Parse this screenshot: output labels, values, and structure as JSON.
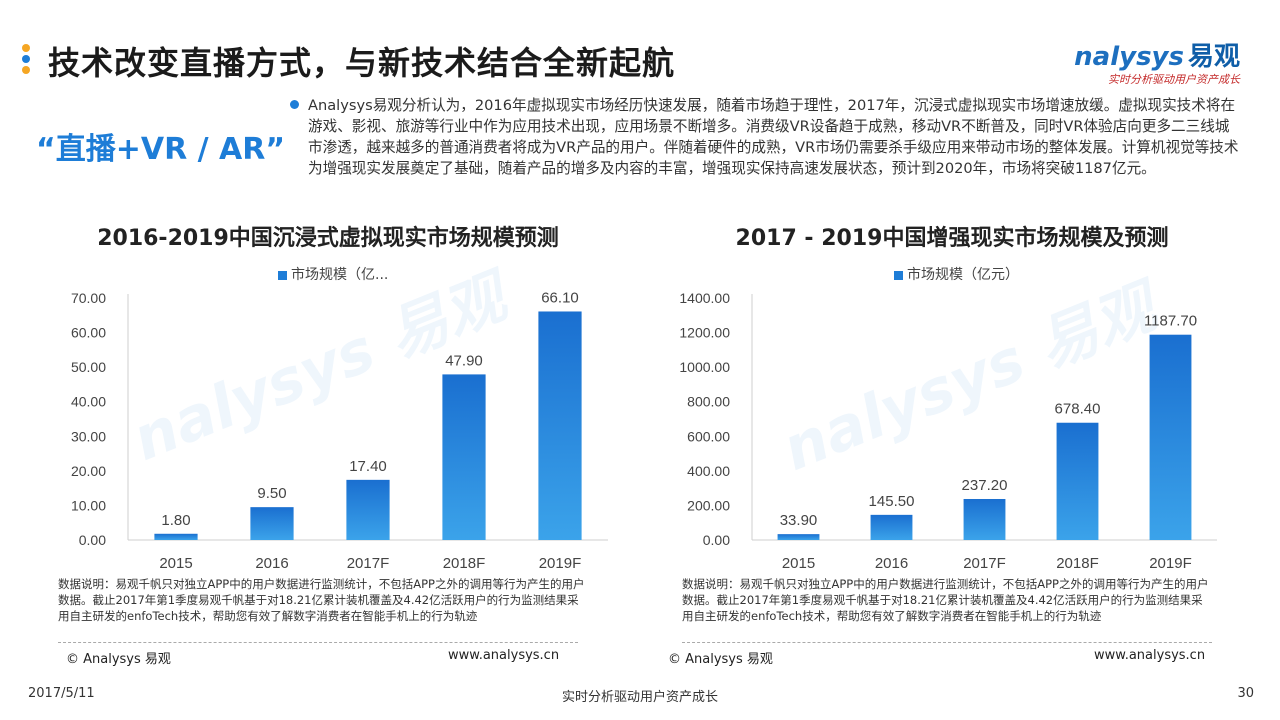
{
  "header": {
    "title": "技术改变直播方式，与新技术结合全新起航",
    "dot_colors": [
      "#f5a623",
      "#1e7dd7",
      "#f5a623"
    ]
  },
  "logo": {
    "brand": "nalysys",
    "brand_cn": "易观",
    "slogan": "实时分析驱动用户资产成长"
  },
  "topic_tag": "“直播+VR / AR”",
  "intro": "Analysys易观分析认为，2016年虚拟现实市场经历快速发展，随着市场趋于理性，2017年，沉浸式虚拟现实市场增速放缓。虚拟现实技术将在游戏、影视、旅游等行业中作为应用技术出现，应用场景不断增多。消费级VR设备趋于成熟，移动VR不断普及，同时VR体验店向更多二三线城市渗透，越来越多的普通消费者将成为VR产品的用户。伴随着硬件的成熟，VR市场仍需要杀手级应用来带动市场的整体发展。计算机视觉等技术为增强现实发展奠定了基础，随着产品的增多及内容的丰富，增强现实保持高速发展状态，预计到2020年，市场将突破1187亿元。",
  "panels": [
    {
      "note": "数据说明：易观千帆只对独立APP中的用户数据进行监测统计，不包括APP之外的调用等行为产生的用户数据。截止2017年第1季度易观千帆基于对18.21亿累计装机覆盖及4.42亿活跃用户的行为监测结果采用自主研发的enfoTech技术，帮助您有效了解数字消费者在智能手机上的行为轨迹",
      "copyright": "© Analysys 易观",
      "website": "www.analysys.cn"
    },
    {
      "note": "数据说明：易观千帆只对独立APP中的用户数据进行监测统计，不包括APP之外的调用等行为产生的用户数据。截止2017年第1季度易观千帆基于对18.21亿累计装机覆盖及4.42亿活跃用户的行为监测结果采用自主研发的enfoTech技术，帮助您有效了解数字消费者在智能手机上的行为轨迹",
      "copyright": "© Analysys 易观",
      "website": "www.analysys.cn"
    }
  ],
  "chart_data": [
    {
      "type": "bar",
      "title": "2016-2019中国沉浸式虚拟现实市场规模预测",
      "legend": "市场规模（亿...",
      "categories": [
        "2015",
        "2016",
        "2017F",
        "2018F",
        "2019F"
      ],
      "values": [
        1.8,
        9.5,
        17.4,
        47.9,
        66.1
      ],
      "value_labels": [
        "1.80",
        "9.50",
        "17.40",
        "47.90",
        "66.10"
      ],
      "ylim": [
        0,
        70
      ],
      "yticks": [
        "0.00",
        "10.00",
        "20.00",
        "30.00",
        "40.00",
        "50.00",
        "60.00",
        "70.00"
      ],
      "legend_position": "top",
      "grid": false,
      "color": "#1e7dd7"
    },
    {
      "type": "bar",
      "title": "2017 - 2019中国增强现实市场规模及预测",
      "legend": "市场规模（亿元）",
      "categories": [
        "2015",
        "2016",
        "2017F",
        "2018F",
        "2019F"
      ],
      "values": [
        33.9,
        145.5,
        237.2,
        678.4,
        1187.7
      ],
      "value_labels": [
        "33.90",
        "145.50",
        "237.20",
        "678.40",
        "1187.70"
      ],
      "ylim": [
        0,
        1400
      ],
      "yticks": [
        "0.00",
        "200.00",
        "400.00",
        "600.00",
        "800.00",
        "1000.00",
        "1200.00",
        "1400.00"
      ],
      "legend_position": "top",
      "grid": false,
      "color": "#1e7dd7"
    }
  ],
  "footer": {
    "date": "2017/5/11",
    "slogan": "实时分析驱动用户资产成长",
    "page": "30"
  }
}
